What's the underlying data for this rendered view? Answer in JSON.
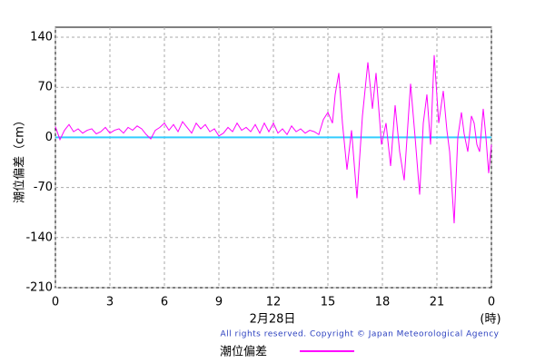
{
  "chart_data": {
    "type": "line",
    "y_label": "潮位偏差（cm）",
    "x_label": "(時)",
    "date_label": "2月28日",
    "copyright": "All rights reserved. Copyright © Japan Meteorological Agency",
    "xlim": [
      0,
      24
    ],
    "xticks": [
      0,
      3,
      6,
      9,
      12,
      15,
      18,
      21,
      {
        "value": 24,
        "label": "0"
      }
    ],
    "ylim": [
      -210,
      154
    ],
    "yticks": [
      -210,
      -140,
      -70,
      0,
      70,
      140
    ],
    "grid": true,
    "baseline": {
      "value": 0,
      "color": "#33ccff"
    },
    "series": [
      {
        "name": "潮位偏差",
        "color": "#ff00ff",
        "x": [
          0,
          0.25,
          0.5,
          0.75,
          1,
          1.25,
          1.5,
          1.75,
          2,
          2.25,
          2.5,
          2.75,
          3,
          3.25,
          3.5,
          3.75,
          4,
          4.25,
          4.5,
          4.75,
          5,
          5.25,
          5.5,
          5.75,
          6,
          6.25,
          6.5,
          6.75,
          7,
          7.25,
          7.5,
          7.75,
          8,
          8.25,
          8.5,
          8.75,
          9,
          9.25,
          9.5,
          9.75,
          10,
          10.25,
          10.5,
          10.75,
          11,
          11.25,
          11.5,
          11.75,
          12,
          12.25,
          12.5,
          12.75,
          13,
          13.25,
          13.5,
          13.75,
          14,
          14.25,
          14.5,
          14.75,
          15,
          15.25,
          15.4,
          15.6,
          15.8,
          16.05,
          16.3,
          16.6,
          16.9,
          17.2,
          17.45,
          17.65,
          17.95,
          18.2,
          18.45,
          18.7,
          18.95,
          19.2,
          19.55,
          19.8,
          20.05,
          20.25,
          20.45,
          20.65,
          20.85,
          21.1,
          21.35,
          21.55,
          21.7,
          21.95,
          22.15,
          22.35,
          22.5,
          22.7,
          22.9,
          23.05,
          23.2,
          23.35,
          23.55,
          23.7,
          23.85,
          24
        ],
        "values": [
          15,
          -3,
          10,
          18,
          8,
          12,
          6,
          10,
          12,
          5,
          8,
          14,
          6,
          10,
          12,
          6,
          14,
          10,
          16,
          12,
          4,
          -2,
          10,
          14,
          20,
          10,
          18,
          8,
          22,
          14,
          6,
          20,
          12,
          18,
          8,
          12,
          2,
          6,
          14,
          8,
          20,
          10,
          14,
          8,
          18,
          6,
          20,
          8,
          20,
          6,
          12,
          4,
          16,
          8,
          12,
          6,
          10,
          8,
          4,
          25,
          35,
          20,
          60,
          90,
          20,
          -45,
          10,
          -85,
          30,
          105,
          40,
          90,
          -10,
          20,
          -40,
          45,
          -20,
          -60,
          75,
          0,
          -80,
          20,
          60,
          -10,
          115,
          20,
          65,
          10,
          -20,
          -120,
          0,
          35,
          5,
          -20,
          30,
          20,
          -10,
          -20,
          40,
          0,
          -50,
          -10
        ]
      }
    ]
  }
}
